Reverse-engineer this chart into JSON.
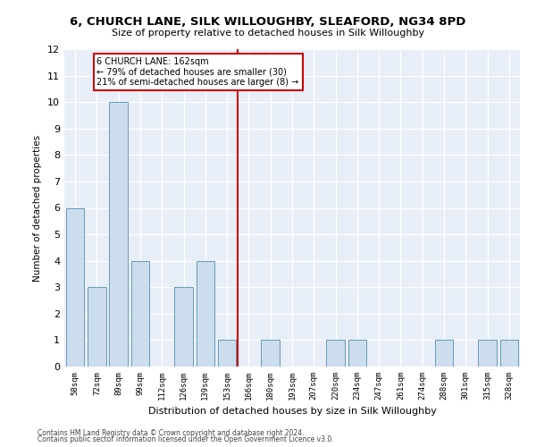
{
  "title": "6, CHURCH LANE, SILK WILLOUGHBY, SLEAFORD, NG34 8PD",
  "subtitle": "Size of property relative to detached houses in Silk Willoughby",
  "xlabel": "Distribution of detached houses by size in Silk Willoughby",
  "ylabel": "Number of detached properties",
  "categories": [
    "58sqm",
    "72sqm",
    "89sqm",
    "99sqm",
    "112sqm",
    "126sqm",
    "139sqm",
    "153sqm",
    "166sqm",
    "180sqm",
    "193sqm",
    "207sqm",
    "220sqm",
    "234sqm",
    "247sqm",
    "261sqm",
    "274sqm",
    "288sqm",
    "301sqm",
    "315sqm",
    "328sqm"
  ],
  "values": [
    6,
    3,
    10,
    4,
    0,
    3,
    4,
    1,
    0,
    1,
    0,
    0,
    1,
    1,
    0,
    0,
    0,
    1,
    0,
    1,
    1
  ],
  "bar_color": "#ccdded",
  "bar_edge_color": "#6699bb",
  "ylim": [
    0,
    12
  ],
  "yticks": [
    0,
    1,
    2,
    3,
    4,
    5,
    6,
    7,
    8,
    9,
    10,
    11,
    12
  ],
  "plot_background": "#e8eef8",
  "annotation_line1": "6 CHURCH LANE: 162sqm",
  "annotation_line2": "← 79% of detached houses are smaller (30)",
  "annotation_line3": "21% of semi-detached houses are larger (8) →",
  "ref_color": "#cc0000",
  "footer1": "Contains HM Land Registry data © Crown copyright and database right 2024.",
  "footer2": "Contains public sector information licensed under the Open Government Licence v3.0."
}
